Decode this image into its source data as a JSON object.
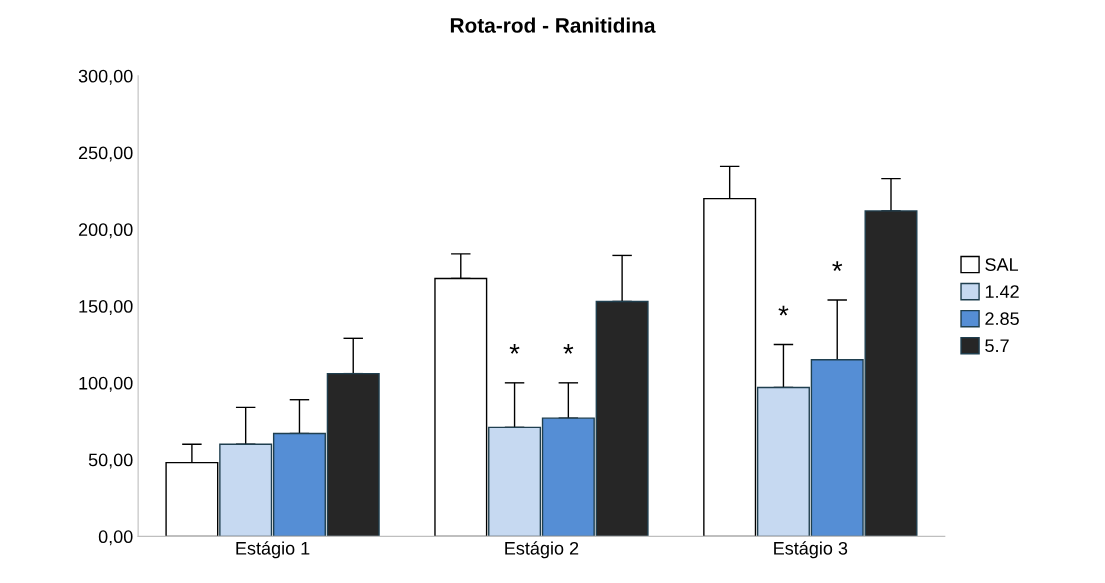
{
  "chart_data": {
    "type": "bar",
    "title": "Rota-rod - Ranitidina",
    "categories": [
      "Estágio 1",
      "Estágio 2",
      "Estágio 3"
    ],
    "series": [
      {
        "name": "SAL",
        "color": "#ffffff",
        "values": [
          48,
          168,
          220
        ],
        "errors": [
          [
            48,
            60
          ],
          [
            168,
            184
          ],
          [
            220,
            241
          ]
        ]
      },
      {
        "name": "1.42",
        "color": "#c6d9f1",
        "values": [
          60,
          71,
          97
        ],
        "errors": [
          [
            60,
            84
          ],
          [
            71,
            100
          ],
          [
            97,
            125
          ]
        ]
      },
      {
        "name": "2.85",
        "color": "#558ed5",
        "values": [
          67,
          77,
          115
        ],
        "errors": [
          [
            67,
            89
          ],
          [
            77,
            100
          ],
          [
            115,
            154
          ]
        ]
      },
      {
        "name": "5.7",
        "color": "#262626",
        "values": [
          106,
          153,
          212
        ],
        "errors": [
          [
            106,
            129
          ],
          [
            153,
            183
          ],
          [
            212,
            233
          ]
        ]
      }
    ],
    "ylim": [
      0,
      300
    ],
    "yticks": [
      {
        "value": 0,
        "label": "0,00"
      },
      {
        "value": 50,
        "label": "50,00"
      },
      {
        "value": 100,
        "label": "100,00"
      },
      {
        "value": 150,
        "label": "150,00"
      },
      {
        "value": 200,
        "label": "200,00"
      },
      {
        "value": 250,
        "label": "250,00"
      },
      {
        "value": 300,
        "label": "300,00"
      }
    ],
    "annotations": [
      "*",
      "*",
      "*",
      "*"
    ],
    "grid": false,
    "legend": "right"
  }
}
